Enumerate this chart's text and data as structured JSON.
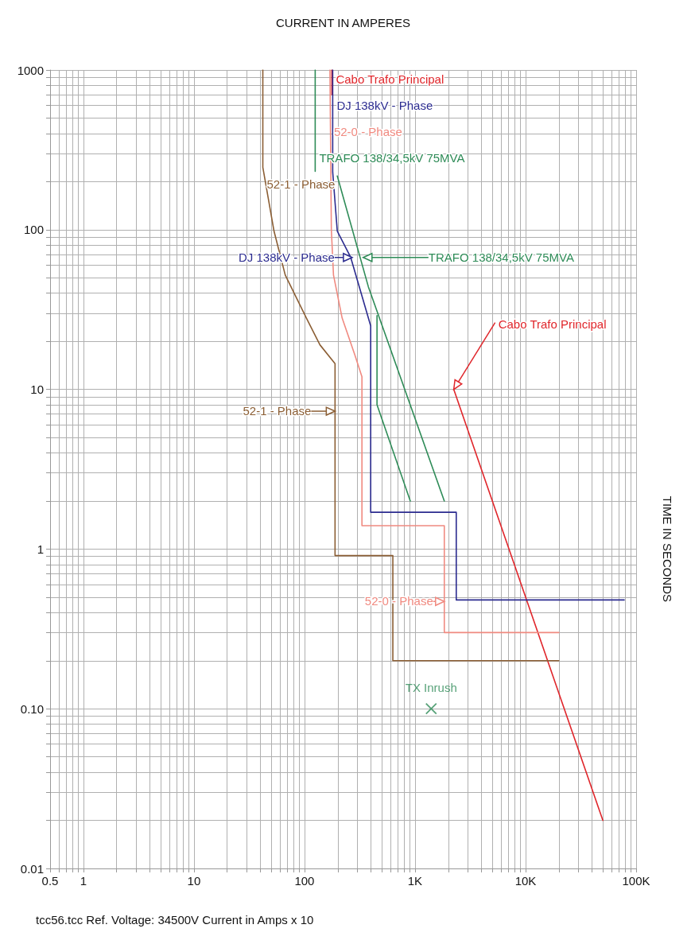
{
  "chart_data": {
    "type": "line",
    "xlabel": "CURRENT IN AMPERES",
    "ylabel": "TIME IN SECONDS",
    "log": "xy",
    "grid": true,
    "marker": "none",
    "xlim": [
      0.5,
      100000
    ],
    "ylim": [
      0.01,
      1000
    ],
    "xticks": [
      0.5,
      {
        "value": 0.6,
        "label": null
      },
      {
        "value": 0.7,
        "label": null
      },
      {
        "value": 0.8,
        "label": null
      },
      {
        "value": 0.9,
        "label": null
      },
      1,
      {
        "value": 2,
        "label": null
      },
      {
        "value": 3,
        "label": null
      },
      {
        "value": 4,
        "label": null
      },
      {
        "value": 5,
        "label": null
      },
      {
        "value": 6,
        "label": null
      },
      {
        "value": 7,
        "label": null
      },
      {
        "value": 8,
        "label": null
      },
      {
        "value": 9,
        "label": null
      },
      10,
      {
        "value": 20,
        "label": null
      },
      {
        "value": 30,
        "label": null
      },
      {
        "value": 40,
        "label": null
      },
      {
        "value": 50,
        "label": null
      },
      {
        "value": 60,
        "label": null
      },
      {
        "value": 70,
        "label": null
      },
      {
        "value": 80,
        "label": null
      },
      {
        "value": 90,
        "label": null
      },
      100,
      {
        "value": 200,
        "label": null
      },
      {
        "value": 300,
        "label": null
      },
      {
        "value": 400,
        "label": null
      },
      {
        "value": 500,
        "label": null
      },
      {
        "value": 600,
        "label": null
      },
      {
        "value": 700,
        "label": null
      },
      {
        "value": 800,
        "label": null
      },
      {
        "value": 900,
        "label": null
      },
      {
        "value": 1000,
        "label": "1K"
      },
      {
        "value": 2000,
        "label": null
      },
      {
        "value": 3000,
        "label": null
      },
      {
        "value": 4000,
        "label": null
      },
      {
        "value": 5000,
        "label": null
      },
      {
        "value": 6000,
        "label": null
      },
      {
        "value": 7000,
        "label": null
      },
      {
        "value": 8000,
        "label": null
      },
      {
        "value": 9000,
        "label": null
      },
      {
        "value": 10000,
        "label": "10K"
      },
      {
        "value": 20000,
        "label": null
      },
      {
        "value": 30000,
        "label": null
      },
      {
        "value": 40000,
        "label": null
      },
      {
        "value": 50000,
        "label": null
      },
      {
        "value": 60000,
        "label": null
      },
      {
        "value": 70000,
        "label": null
      },
      {
        "value": 80000,
        "label": null
      },
      {
        "value": 90000,
        "label": null
      },
      {
        "value": 100000,
        "label": "100K"
      }
    ],
    "yticks": [
      0.01,
      {
        "value": 0.02,
        "label": null
      },
      {
        "value": 0.03,
        "label": null
      },
      {
        "value": 0.04,
        "label": null
      },
      {
        "value": 0.05,
        "label": null
      },
      {
        "value": 0.06,
        "label": null
      },
      {
        "value": 0.07,
        "label": null
      },
      {
        "value": 0.08,
        "label": null
      },
      {
        "value": 0.09,
        "label": null
      },
      {
        "value": 0.1,
        "label": "0.10"
      },
      {
        "value": 0.2,
        "label": null
      },
      {
        "value": 0.3,
        "label": null
      },
      {
        "value": 0.4,
        "label": null
      },
      {
        "value": 0.5,
        "label": null
      },
      {
        "value": 0.6,
        "label": null
      },
      {
        "value": 0.7,
        "label": null
      },
      {
        "value": 0.8,
        "label": null
      },
      {
        "value": 0.9,
        "label": null
      },
      1,
      {
        "value": 2,
        "label": null
      },
      {
        "value": 3,
        "label": null
      },
      {
        "value": 4,
        "label": null
      },
      {
        "value": 5,
        "label": null
      },
      {
        "value": 6,
        "label": null
      },
      {
        "value": 7,
        "label": null
      },
      {
        "value": 8,
        "label": null
      },
      {
        "value": 9,
        "label": null
      },
      10,
      {
        "value": 20,
        "label": null
      },
      {
        "value": 30,
        "label": null
      },
      {
        "value": 40,
        "label": null
      },
      {
        "value": 50,
        "label": null
      },
      {
        "value": 60,
        "label": null
      },
      {
        "value": 70,
        "label": null
      },
      {
        "value": 80,
        "label": null
      },
      {
        "value": 90,
        "label": null
      },
      100,
      {
        "value": 200,
        "label": null
      },
      {
        "value": 300,
        "label": null
      },
      {
        "value": 400,
        "label": null
      },
      {
        "value": 500,
        "label": null
      },
      {
        "value": 600,
        "label": null
      },
      {
        "value": 700,
        "label": null
      },
      {
        "value": 800,
        "label": null
      },
      {
        "value": 900,
        "label": null
      },
      1000
    ],
    "series": [
      {
        "name": "Cabo Trafo Principal",
        "color": "#e0262b",
        "x": [
          177,
          177,
          null,
          2240,
          50000
        ],
        "values": [
          1000,
          700,
          null,
          10,
          0.02
        ]
      },
      {
        "name": "DJ 138kV  - Phase",
        "color": "#2b2b8f",
        "x": [
          180,
          180,
          198,
          262,
          397,
          397,
          2360,
          2360,
          78000
        ],
        "values": [
          1000,
          230,
          98,
          67,
          25,
          1.7,
          1.7,
          0.48,
          0.48
        ]
      },
      {
        "name": "52-0 - Phase",
        "color": "#f08a80",
        "x": [
          170,
          175,
          183,
          219,
          285,
          331,
          331,
          1840,
          1840,
          20000
        ],
        "values": [
          1000,
          100,
          52,
          28,
          16.5,
          12,
          1.4,
          1.4,
          0.3,
          0.3
        ]
      },
      {
        "name": "TRAFO 138/34,5kV 75MVA",
        "color": "#2e8b57",
        "x": [
          125,
          125,
          null,
          198,
          378,
          1840,
          null,
          453,
          453,
          906
        ],
        "values": [
          1000,
          232,
          null,
          217,
          44,
          2,
          null,
          29,
          8,
          2
        ]
      },
      {
        "name": "52-1 - Phase",
        "color": "#8b5e34",
        "x": [
          42,
          42,
          53,
          67,
          104,
          138,
          189,
          189,
          630,
          630,
          20000
        ],
        "values": [
          1000,
          246,
          98,
          52,
          28,
          19,
          14.5,
          0.91,
          0.91,
          0.2,
          0.2
        ]
      },
      {
        "name": "TX Inrush",
        "type": "scatter",
        "marker": "cross",
        "color": "#2e8b57",
        "x": [
          1400
        ],
        "values": [
          0.1
        ]
      }
    ],
    "annotations": [
      {
        "text": "DJ 138kV  - Phase",
        "x": 270,
        "y": 67
      },
      {
        "text": "TRAFO 138/34,5kV 75MVA",
        "x": 340,
        "y": 67
      },
      {
        "text": "52-1 - Phase",
        "x": 189,
        "y": 7.3
      },
      {
        "text": "Cabo Trafo Principal",
        "x": 2240,
        "y": 10
      },
      {
        "text": "52-0 - Phase",
        "x": 1840,
        "y": 0.47
      },
      "tcc56.tcc   Ref. Voltage: 34500V   Current in Amps x 10"
    ]
  }
}
